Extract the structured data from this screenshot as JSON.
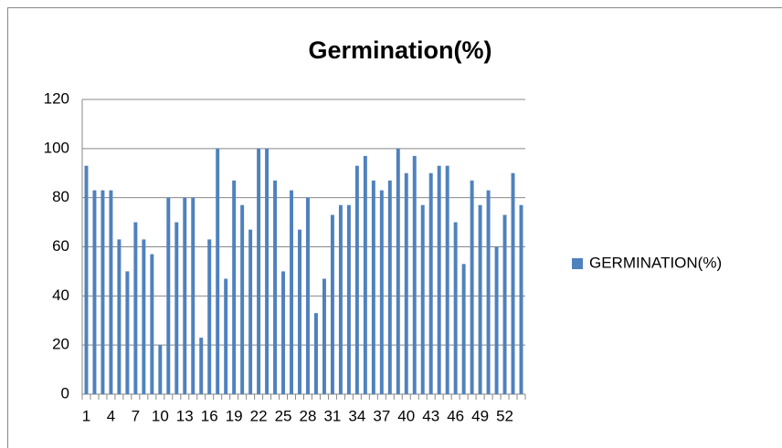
{
  "chart_data": {
    "type": "bar",
    "title": "Germination(%)",
    "categories": [
      "1",
      null,
      null,
      "4",
      null,
      null,
      "7",
      null,
      null,
      "10",
      null,
      null,
      "13",
      null,
      null,
      "16",
      null,
      null,
      "19",
      null,
      null,
      "22",
      null,
      null,
      "25",
      null,
      null,
      "28",
      null,
      null,
      "31",
      null,
      null,
      "34",
      null,
      null,
      "37",
      null,
      null,
      "40",
      null,
      null,
      "43",
      null,
      null,
      "46",
      null,
      null,
      "49",
      null,
      null,
      "52",
      null,
      null
    ],
    "series": [
      {
        "name": "GERMINATION(%)",
        "color": "#4f81bd",
        "values": [
          93,
          83,
          83,
          83,
          63,
          50,
          70,
          63,
          57,
          20,
          80,
          70,
          80,
          80,
          23,
          63,
          100,
          47,
          87,
          77,
          67,
          100,
          100,
          87,
          50,
          83,
          67,
          80,
          33,
          47,
          73,
          77,
          77,
          93,
          97,
          87,
          83,
          87,
          100,
          90,
          97,
          77,
          90,
          93,
          93,
          70,
          53,
          87,
          77,
          83,
          60,
          73,
          90,
          77
        ]
      }
    ],
    "ylim": [
      0,
      120
    ],
    "yticks": [
      0,
      20,
      40,
      60,
      80,
      100,
      120
    ],
    "grid": true,
    "legend": "right"
  }
}
